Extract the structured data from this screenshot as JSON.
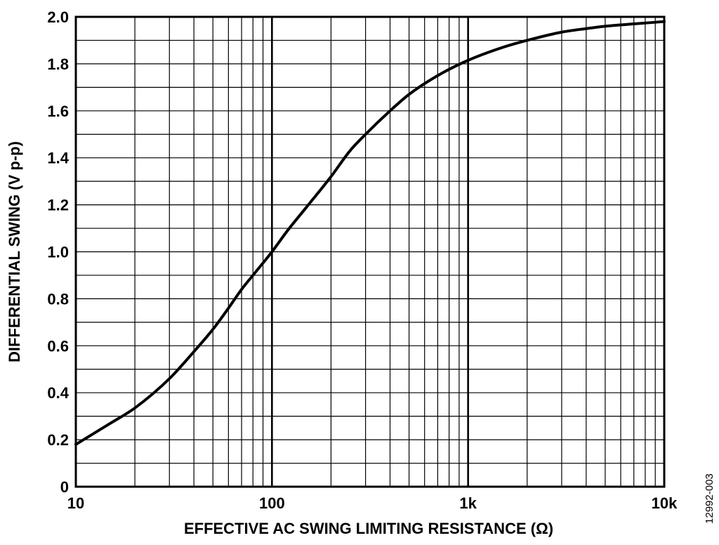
{
  "chart_data": {
    "type": "line",
    "title": "",
    "xlabel": "EFFECTIVE AC SWING LIMITING RESISTANCE (Ω)",
    "ylabel": "DIFFERENTIAL SWING (V p-p)",
    "x_scale": "log",
    "xlim": [
      10,
      10000
    ],
    "ylim": [
      0,
      2.0
    ],
    "grid": true,
    "x_ticks": [
      10,
      100,
      1000,
      10000
    ],
    "x_tick_labels": [
      "10",
      "100",
      "1k",
      "10k"
    ],
    "y_ticks": [
      0,
      0.2,
      0.4,
      0.6,
      0.8,
      1.0,
      1.2,
      1.4,
      1.6,
      1.8,
      2.0
    ],
    "y_tick_labels": [
      "0",
      "0.2",
      "0.4",
      "0.6",
      "0.8",
      "1.0",
      "1.2",
      "1.4",
      "1.6",
      "1.8",
      "2.0"
    ],
    "series": [
      {
        "color": "#000000",
        "x": [
          10,
          15,
          20,
          30,
          40,
          50,
          60,
          70,
          80,
          100,
          120,
          150,
          200,
          250,
          300,
          400,
          500,
          700,
          1000,
          1500,
          2000,
          3000,
          4000,
          5000,
          7000,
          10000
        ],
        "y": [
          0.18,
          0.27,
          0.335,
          0.46,
          0.575,
          0.67,
          0.76,
          0.84,
          0.9,
          1.0,
          1.09,
          1.19,
          1.32,
          1.43,
          1.5,
          1.6,
          1.67,
          1.75,
          1.815,
          1.87,
          1.9,
          1.935,
          1.95,
          1.96,
          1.97,
          1.98
        ]
      }
    ]
  },
  "figure_id": "12992-003"
}
